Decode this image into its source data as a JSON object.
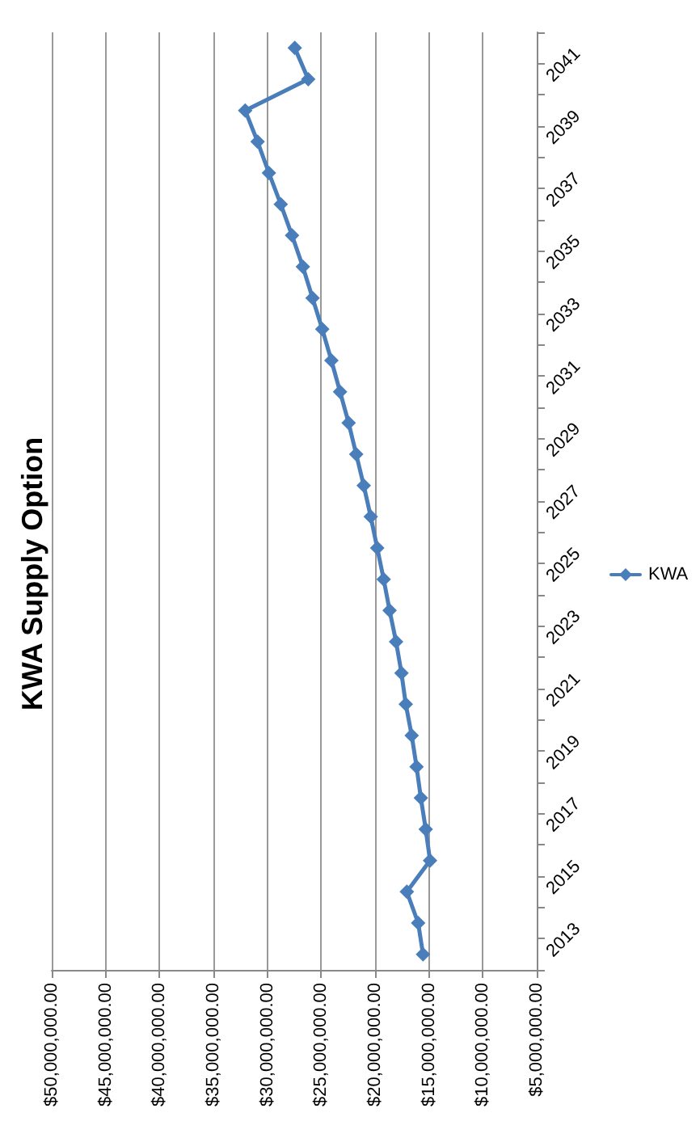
{
  "chart_data": {
    "type": "line",
    "title": "KWA Supply Option",
    "orientation": "horizontal",
    "categories": [
      null,
      "2041",
      null,
      "2039",
      null,
      "2037",
      null,
      "2035",
      null,
      "2033",
      null,
      "2031",
      null,
      "2029",
      null,
      "2027",
      null,
      "2025",
      null,
      "2023",
      null,
      "2021",
      null,
      "2019",
      null,
      "2017",
      null,
      "2015",
      null,
      "2013"
    ],
    "series": [
      {
        "name": "KWA",
        "color": "#4a7ebb",
        "values": [
          27450000,
          26200000,
          32050000,
          30900000,
          29850000,
          28750000,
          27700000,
          26700000,
          25800000,
          24900000,
          24050000,
          23250000,
          22450000,
          21750000,
          21050000,
          20400000,
          19800000,
          19200000,
          18650000,
          18050000,
          17550000,
          17150000,
          16600000,
          16150000,
          15750000,
          15300000,
          14900000,
          17050000,
          16000000,
          15550000
        ]
      }
    ],
    "xlim": [
      50000000,
      5000000
    ],
    "xticks": [
      {
        "value": 50000000,
        "label": "$50,000,000.00"
      },
      {
        "value": 45000000,
        "label": "$45,000,000.00"
      },
      {
        "value": 40000000,
        "label": "$40,000,000.00"
      },
      {
        "value": 35000000,
        "label": "$35,000,000.00"
      },
      {
        "value": 30000000,
        "label": "$30,000,000.00"
      },
      {
        "value": 25000000,
        "label": "$25,000,000.00"
      },
      {
        "value": 20000000,
        "label": "$20,000,000.00"
      },
      {
        "value": 15000000,
        "label": "$15,000,000.00"
      },
      {
        "value": 10000000,
        "label": "$10,000,000.00"
      },
      {
        "value": 5000000,
        "label": "$5,000,000.00"
      }
    ],
    "grid": "x",
    "legend": "right",
    "marker": "diamond",
    "line_style": "solid"
  }
}
